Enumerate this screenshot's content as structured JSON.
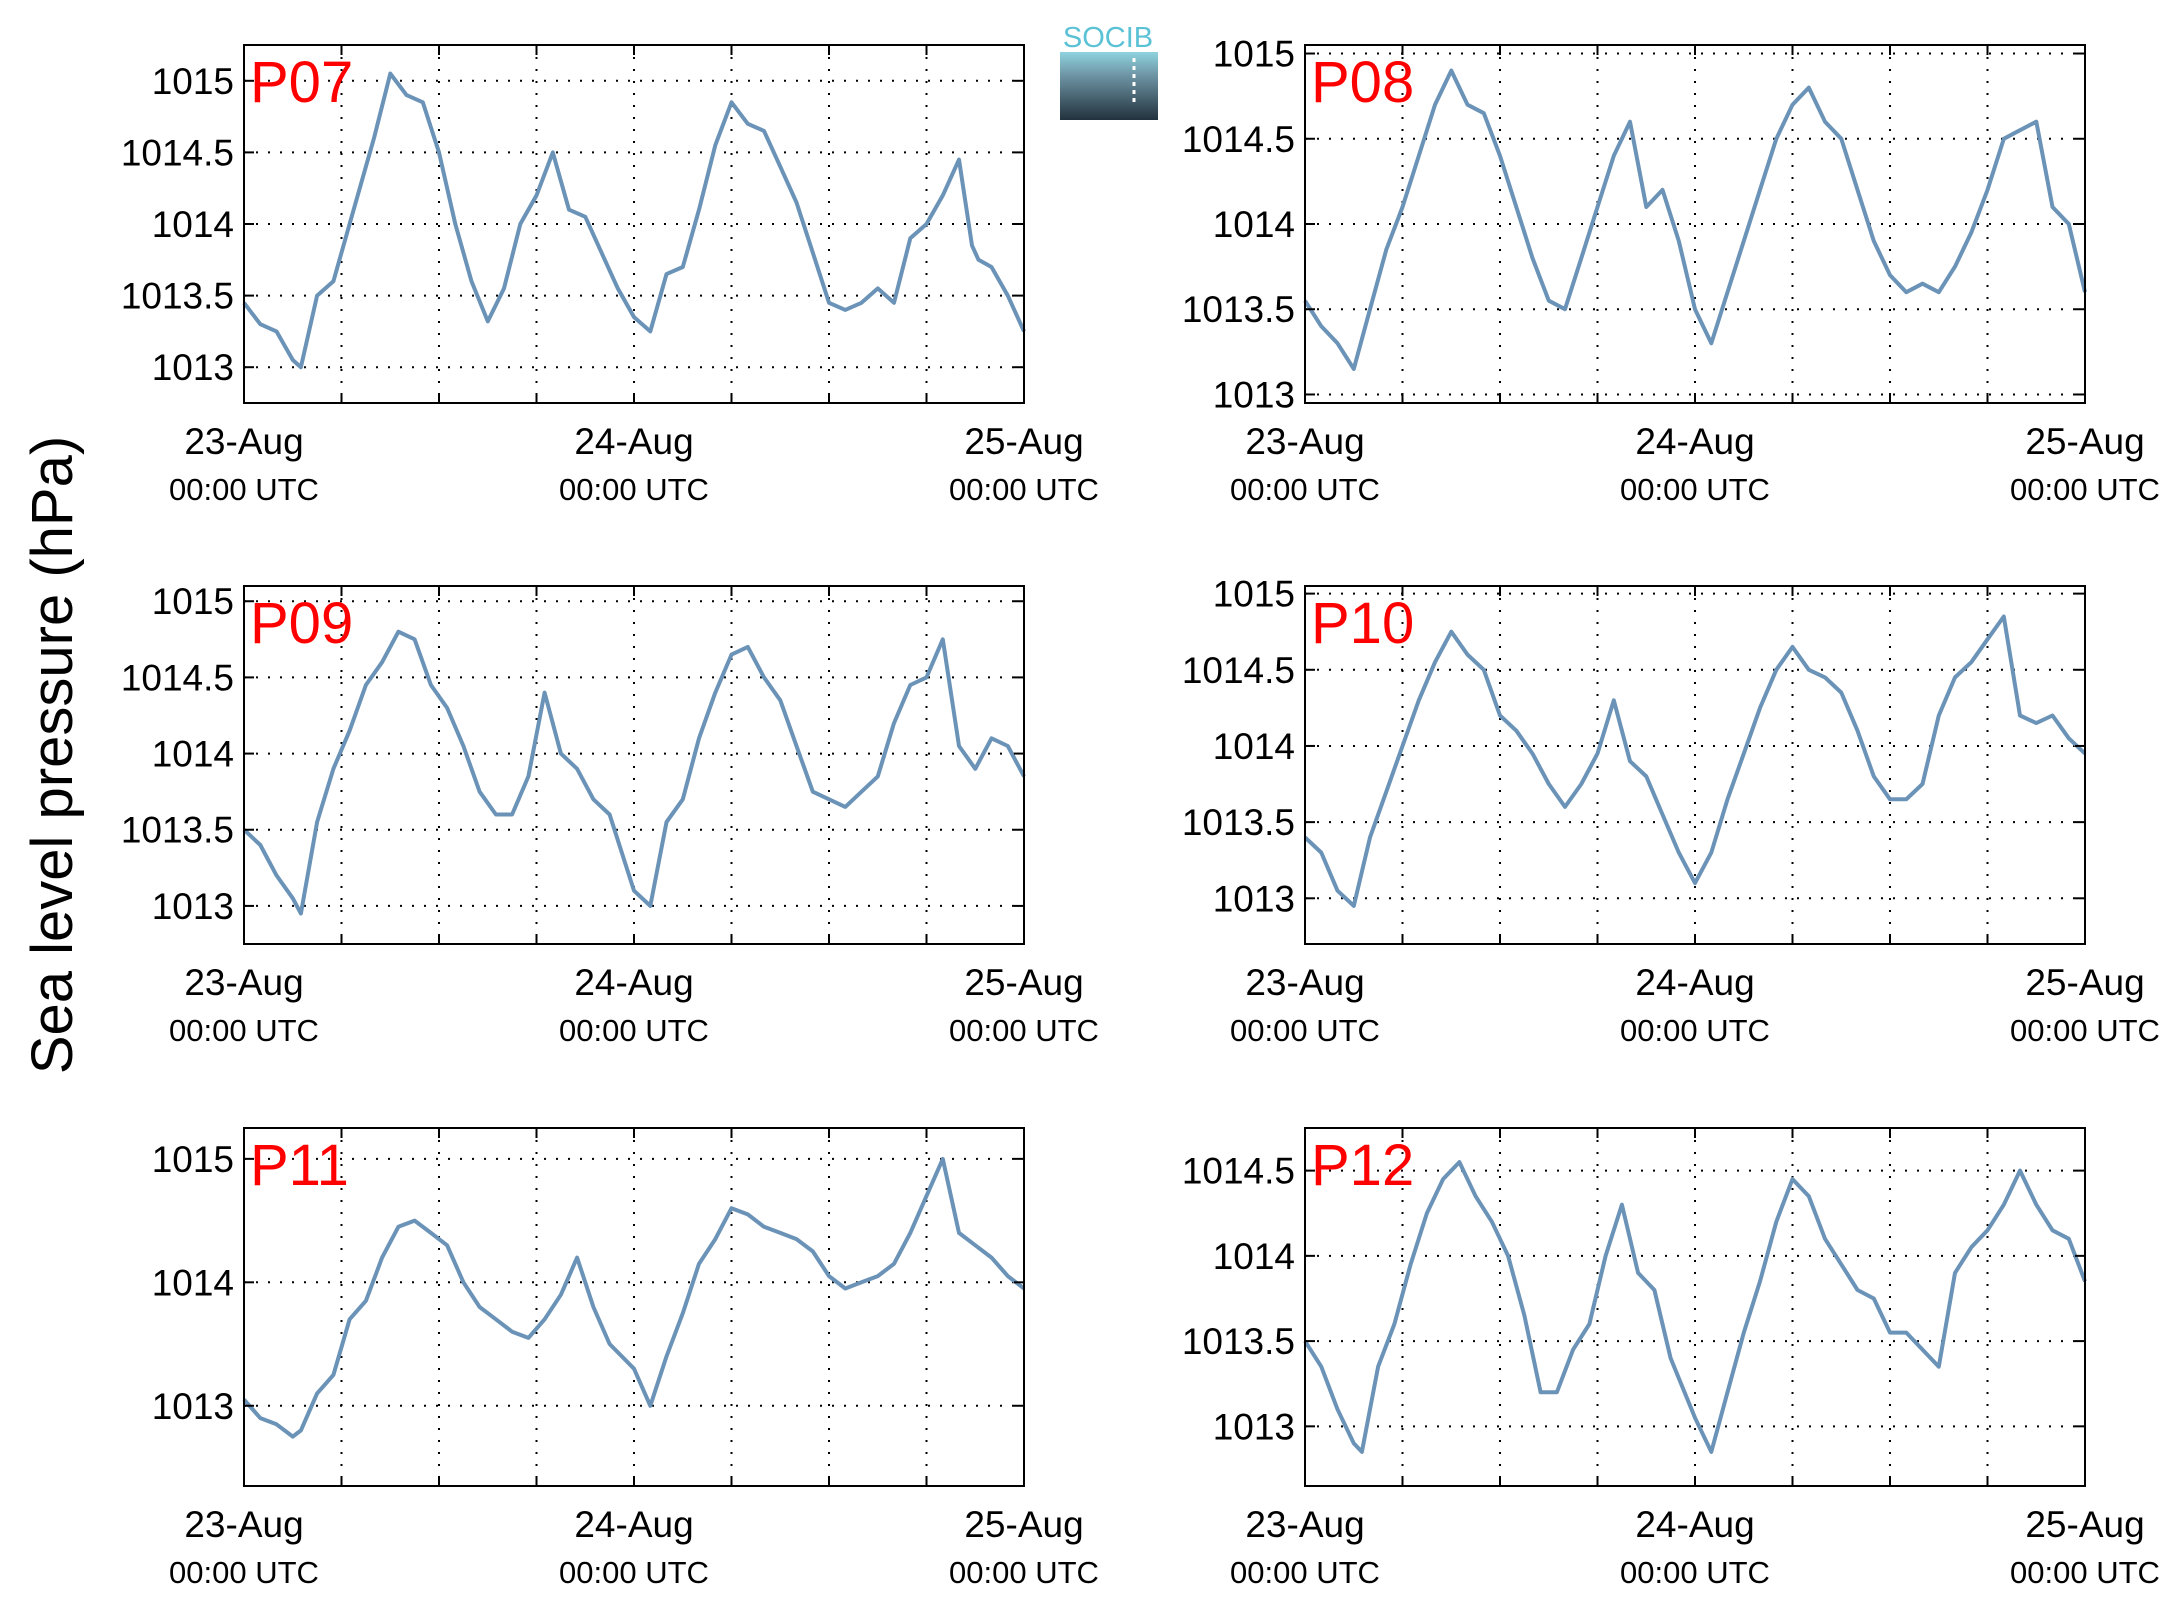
{
  "ylabel": "Sea level pressure (hPa)",
  "logo": {
    "text": "SOCIB",
    "color": "#5bc2d6"
  },
  "x_ticks": [
    {
      "date": "23-Aug",
      "time": "00:00 UTC"
    },
    {
      "date": "24-Aug",
      "time": "00:00 UTC"
    },
    {
      "date": "25-Aug",
      "time": "00:00 UTC"
    }
  ],
  "colors": {
    "line": "#6b93b7",
    "label": "#ff0000",
    "grid": "#000000"
  },
  "chart_data": [
    {
      "type": "line",
      "label": "P07",
      "ylim": [
        1012.75,
        1015.25
      ],
      "yticks": [
        1013,
        1013.5,
        1014,
        1014.5,
        1015
      ],
      "ytick_labels": [
        "1013",
        "1013.5",
        "1014",
        "1014.5",
        "1015"
      ],
      "xlim": [
        "2015-08-23T00:00",
        "2015-08-25T00:00"
      ],
      "grid": true,
      "x_hours": [
        0,
        1,
        2,
        3,
        3.5,
        4.5,
        5.5,
        6.5,
        8,
        9,
        10,
        11,
        12,
        13,
        14,
        15,
        16,
        17,
        18,
        19,
        20,
        21,
        22,
        23,
        24,
        25,
        26,
        27,
        28,
        29,
        30,
        31,
        32,
        33,
        34,
        35,
        36,
        37,
        38,
        39,
        40,
        41,
        42,
        43,
        44,
        44.8,
        45.2,
        46,
        47,
        48
      ],
      "y": [
        1013.45,
        1013.3,
        1013.25,
        1013.05,
        1013.0,
        1013.5,
        1013.6,
        1014.0,
        1014.6,
        1015.05,
        1014.9,
        1014.85,
        1014.5,
        1014.0,
        1013.6,
        1013.32,
        1013.55,
        1014.0,
        1014.2,
        1014.5,
        1014.1,
        1014.05,
        1013.8,
        1013.55,
        1013.35,
        1013.25,
        1013.65,
        1013.7,
        1014.1,
        1014.55,
        1014.85,
        1014.7,
        1014.65,
        1014.4,
        1014.15,
        1013.8,
        1013.45,
        1013.4,
        1013.45,
        1013.55,
        1013.45,
        1013.9,
        1014.0,
        1014.2,
        1014.45,
        1013.85,
        1013.75,
        1013.7,
        1013.5,
        1013.25
      ]
    },
    {
      "type": "line",
      "label": "P08",
      "ylim": [
        1012.95,
        1015.05
      ],
      "yticks": [
        1013,
        1013.5,
        1014,
        1014.5,
        1015
      ],
      "ytick_labels": [
        "1013",
        "1013.5",
        "1014",
        "1014.5",
        "1015"
      ],
      "xlim": [
        "2015-08-23T00:00",
        "2015-08-25T00:00"
      ],
      "grid": true,
      "x_hours": [
        0,
        1,
        2,
        3,
        4,
        5,
        6,
        7,
        8,
        9,
        10,
        11,
        12,
        13,
        14,
        15,
        16,
        17,
        18,
        19,
        20,
        21,
        22,
        23,
        24,
        25,
        26,
        27,
        28,
        29,
        30,
        31,
        32,
        33,
        34,
        35,
        36,
        37,
        38,
        39,
        40,
        41,
        42,
        43,
        44,
        45,
        46,
        47,
        48
      ],
      "y": [
        1013.55,
        1013.4,
        1013.3,
        1013.15,
        1013.5,
        1013.85,
        1014.1,
        1014.4,
        1014.7,
        1014.9,
        1014.7,
        1014.65,
        1014.4,
        1014.1,
        1013.8,
        1013.55,
        1013.5,
        1013.8,
        1014.1,
        1014.4,
        1014.6,
        1014.1,
        1014.2,
        1013.9,
        1013.5,
        1013.3,
        1013.6,
        1013.9,
        1014.2,
        1014.5,
        1014.7,
        1014.8,
        1014.6,
        1014.5,
        1014.2,
        1013.9,
        1013.7,
        1013.6,
        1013.65,
        1013.6,
        1013.75,
        1013.95,
        1014.2,
        1014.5,
        1014.55,
        1014.6,
        1014.1,
        1014.0,
        1013.6
      ]
    },
    {
      "type": "line",
      "label": "P09",
      "ylim": [
        1012.75,
        1015.1
      ],
      "yticks": [
        1013,
        1013.5,
        1014,
        1014.5,
        1015
      ],
      "ytick_labels": [
        "1013",
        "1013.5",
        "1014",
        "1014.5",
        "1015"
      ],
      "xlim": [
        "2015-08-23T00:00",
        "2015-08-25T00:00"
      ],
      "grid": true,
      "x_hours": [
        0,
        1,
        2,
        3,
        3.5,
        4.5,
        5.5,
        6.5,
        7.5,
        8.5,
        9.5,
        10.5,
        11.5,
        12.5,
        13.5,
        14.5,
        15.5,
        16.5,
        17.5,
        18.5,
        19.5,
        20.5,
        21.5,
        22.5,
        24,
        25,
        26,
        27,
        28,
        29,
        30,
        31,
        32,
        33,
        34,
        35,
        36,
        37,
        38,
        39,
        40,
        41,
        42,
        43,
        44,
        45,
        46,
        47,
        48
      ],
      "y": [
        1013.5,
        1013.4,
        1013.2,
        1013.05,
        1012.95,
        1013.55,
        1013.9,
        1014.15,
        1014.45,
        1014.6,
        1014.8,
        1014.75,
        1014.45,
        1014.3,
        1014.05,
        1013.75,
        1013.6,
        1013.6,
        1013.85,
        1014.4,
        1014.0,
        1013.9,
        1013.7,
        1013.6,
        1013.1,
        1013.0,
        1013.55,
        1013.7,
        1014.1,
        1014.4,
        1014.65,
        1014.7,
        1014.5,
        1014.35,
        1014.05,
        1013.75,
        1013.7,
        1013.65,
        1013.75,
        1013.85,
        1014.2,
        1014.45,
        1014.5,
        1014.75,
        1014.05,
        1013.9,
        1014.1,
        1014.05,
        1013.85
      ]
    },
    {
      "type": "line",
      "label": "P10",
      "ylim": [
        1012.7,
        1015.05
      ],
      "yticks": [
        1013,
        1013.5,
        1014,
        1014.5,
        1015
      ],
      "ytick_labels": [
        "1013",
        "1013.5",
        "1014",
        "1014.5",
        "1015"
      ],
      "xlim": [
        "2015-08-23T00:00",
        "2015-08-25T00:00"
      ],
      "grid": true,
      "x_hours": [
        0,
        1,
        2,
        3,
        4,
        5,
        6,
        7,
        8,
        9,
        10,
        11,
        12,
        13,
        14,
        15,
        16,
        17,
        18,
        19,
        20,
        21,
        22,
        23,
        24,
        25,
        26,
        27,
        28,
        29,
        30,
        31,
        32,
        33,
        34,
        35,
        36,
        37,
        38,
        39,
        40,
        41,
        42,
        43,
        44,
        45,
        46,
        47,
        48
      ],
      "y": [
        1013.4,
        1013.3,
        1013.05,
        1012.95,
        1013.4,
        1013.7,
        1014.0,
        1014.3,
        1014.55,
        1014.75,
        1014.6,
        1014.5,
        1014.2,
        1014.1,
        1013.95,
        1013.75,
        1013.6,
        1013.75,
        1013.95,
        1014.3,
        1013.9,
        1013.8,
        1013.55,
        1013.3,
        1013.1,
        1013.3,
        1013.65,
        1013.95,
        1014.25,
        1014.5,
        1014.65,
        1014.5,
        1014.45,
        1014.35,
        1014.1,
        1013.8,
        1013.65,
        1013.65,
        1013.75,
        1014.2,
        1014.45,
        1014.55,
        1014.7,
        1014.85,
        1014.2,
        1014.15,
        1014.2,
        1014.05,
        1013.95
      ]
    },
    {
      "type": "line",
      "label": "P11",
      "ylim": [
        1012.35,
        1015.25
      ],
      "yticks": [
        1013,
        1014,
        1015
      ],
      "ytick_labels": [
        "1013",
        "1014",
        "1015"
      ],
      "xlim": [
        "2015-08-23T00:00",
        "2015-08-25T00:00"
      ],
      "grid": true,
      "x_hours": [
        0,
        1,
        2,
        3,
        3.5,
        4.5,
        5.5,
        6.5,
        7.5,
        8.5,
        9.5,
        10.5,
        11.5,
        12.5,
        13.5,
        14.5,
        15.5,
        16.5,
        17.5,
        18.5,
        19.5,
        20.5,
        21.5,
        22.5,
        24,
        25,
        26,
        27,
        28,
        29,
        30,
        31,
        32,
        33,
        34,
        35,
        36,
        37,
        38,
        39,
        40,
        41,
        42,
        43,
        44,
        45,
        46,
        47,
        48
      ],
      "y": [
        1013.05,
        1012.9,
        1012.85,
        1012.75,
        1012.8,
        1013.1,
        1013.25,
        1013.7,
        1013.85,
        1014.2,
        1014.45,
        1014.5,
        1014.4,
        1014.3,
        1014.0,
        1013.8,
        1013.7,
        1013.6,
        1013.55,
        1013.7,
        1013.9,
        1014.2,
        1013.8,
        1013.5,
        1013.3,
        1013.0,
        1013.4,
        1013.75,
        1014.15,
        1014.35,
        1014.6,
        1014.55,
        1014.45,
        1014.4,
        1014.35,
        1014.25,
        1014.05,
        1013.95,
        1014.0,
        1014.05,
        1014.15,
        1014.4,
        1014.7,
        1015.0,
        1014.4,
        1014.3,
        1014.2,
        1014.05,
        1013.95
      ]
    },
    {
      "type": "line",
      "label": "P12",
      "ylim": [
        1012.65,
        1014.75
      ],
      "yticks": [
        1013,
        1013.5,
        1014,
        1014.5
      ],
      "ytick_labels": [
        "1013",
        "1013.5",
        "1014",
        "1014.5"
      ],
      "xlim": [
        "2015-08-23T00:00",
        "2015-08-25T00:00"
      ],
      "grid": true,
      "x_hours": [
        0,
        1,
        2,
        3,
        3.5,
        4.5,
        5.5,
        6.5,
        7.5,
        8.5,
        9.5,
        10.5,
        11.5,
        12.5,
        13.5,
        14.5,
        15.5,
        16.5,
        17.5,
        18.5,
        19.5,
        20.5,
        21.5,
        22.5,
        24,
        25,
        26,
        27,
        28,
        29,
        30,
        31,
        32,
        33,
        34,
        35,
        36,
        37,
        38,
        39,
        40,
        41,
        42,
        43,
        44,
        45,
        46,
        47,
        48
      ],
      "y": [
        1013.5,
        1013.35,
        1013.1,
        1012.9,
        1012.85,
        1013.35,
        1013.6,
        1013.95,
        1014.25,
        1014.45,
        1014.55,
        1014.35,
        1014.2,
        1014.0,
        1013.65,
        1013.2,
        1013.2,
        1013.45,
        1013.6,
        1014.0,
        1014.3,
        1013.9,
        1013.8,
        1013.4,
        1013.05,
        1012.85,
        1013.2,
        1013.55,
        1013.85,
        1014.2,
        1014.45,
        1014.35,
        1014.1,
        1013.95,
        1013.8,
        1013.75,
        1013.55,
        1013.55,
        1013.45,
        1013.35,
        1013.9,
        1014.05,
        1014.15,
        1014.3,
        1014.5,
        1014.3,
        1014.15,
        1014.1,
        1013.85
      ]
    }
  ]
}
